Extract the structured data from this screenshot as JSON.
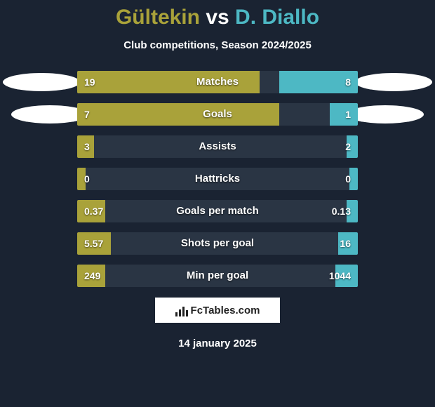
{
  "title": {
    "player1": "Gültekin",
    "vs": "vs",
    "player2": "D. Diallo"
  },
  "subtitle": "Club competitions, Season 2024/2025",
  "colors": {
    "player1": "#a9a23a",
    "player2": "#4db8c4",
    "bar_bg": "#2a3544",
    "page_bg": "#1a2332",
    "text": "#ffffff"
  },
  "stats": [
    {
      "label": "Matches",
      "left_val": "19",
      "right_val": "8",
      "left_pct": 65,
      "right_pct": 28
    },
    {
      "label": "Goals",
      "left_val": "7",
      "right_val": "1",
      "left_pct": 72,
      "right_pct": 10
    },
    {
      "label": "Assists",
      "left_val": "3",
      "right_val": "2",
      "left_pct": 6,
      "right_pct": 4
    },
    {
      "label": "Hattricks",
      "left_val": "0",
      "right_val": "0",
      "left_pct": 3,
      "right_pct": 3
    },
    {
      "label": "Goals per match",
      "left_val": "0.37",
      "right_val": "0.13",
      "left_pct": 10,
      "right_pct": 4
    },
    {
      "label": "Shots per goal",
      "left_val": "5.57",
      "right_val": "16",
      "left_pct": 12,
      "right_pct": 7
    },
    {
      "label": "Min per goal",
      "left_val": "249",
      "right_val": "1044",
      "left_pct": 10,
      "right_pct": 8
    }
  ],
  "logo_text": "FcTables.com",
  "date": "14 january 2025"
}
